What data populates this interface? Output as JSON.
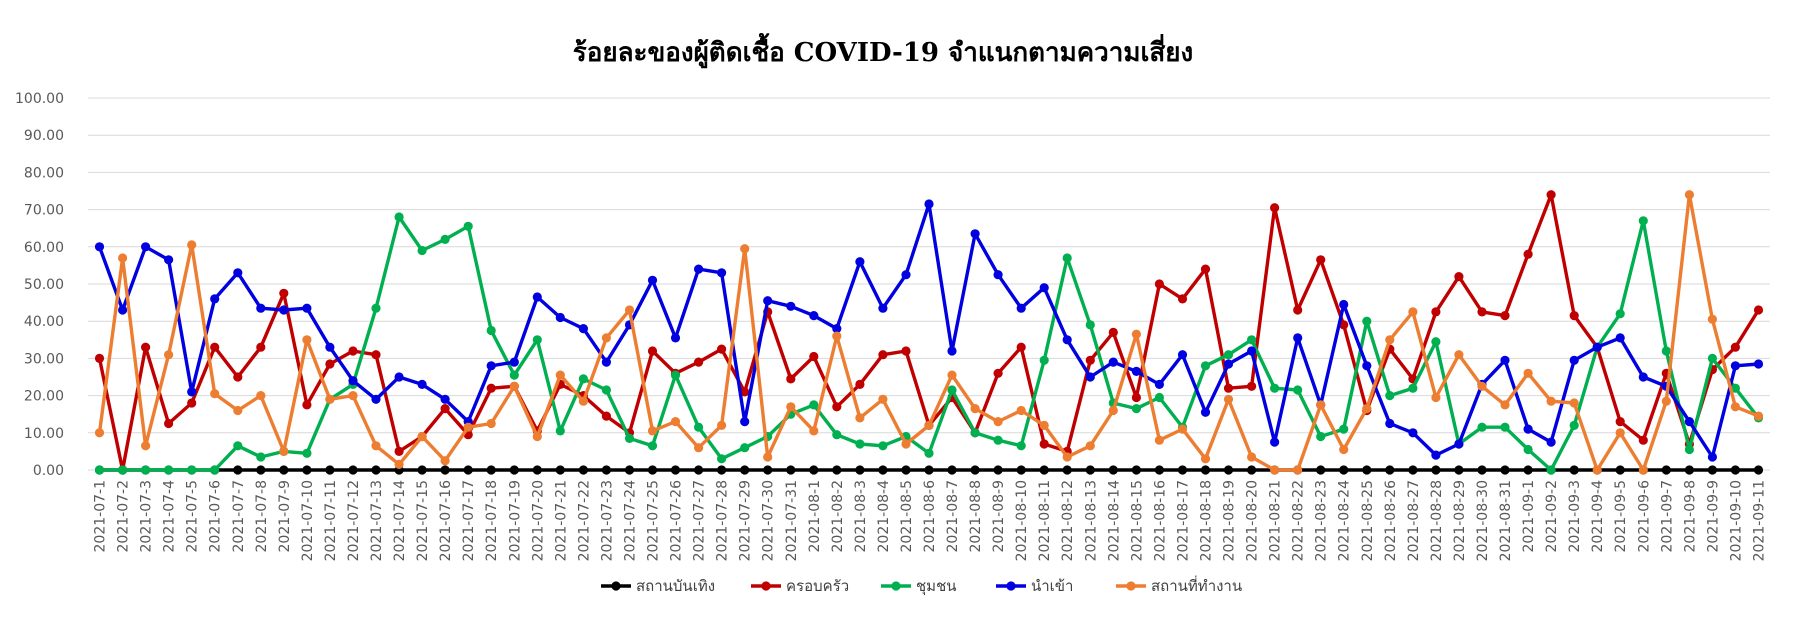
{
  "chart_data": {
    "type": "line",
    "title": "ร้อยละของผู้ติดเชื้อ COVID-19 จำแนกตามความเสี่ยง",
    "xlabel": "",
    "ylabel": "",
    "ylim": [
      0,
      100
    ],
    "yticks": [
      "0.00",
      "10.00",
      "20.00",
      "30.00",
      "40.00",
      "50.00",
      "60.00",
      "70.00",
      "80.00",
      "90.00",
      "100.00"
    ],
    "grid": true,
    "legend_position": "bottom",
    "categories": [
      "2021-07-1",
      "2021-07-2",
      "2021-07-3",
      "2021-07-4",
      "2021-07-5",
      "2021-07-6",
      "2021-07-7",
      "2021-07-8",
      "2021-07-9",
      "2021-07-10",
      "2021-07-11",
      "2021-07-12",
      "2021-07-13",
      "2021-07-14",
      "2021-07-15",
      "2021-07-16",
      "2021-07-17",
      "2021-07-18",
      "2021-07-19",
      "2021-07-20",
      "2021-07-21",
      "2021-07-22",
      "2021-07-23",
      "2021-07-24",
      "2021-07-25",
      "2021-07-26",
      "2021-07-27",
      "2021-07-28",
      "2021-07-29",
      "2021-07-30",
      "2021-07-31",
      "2021-08-1",
      "2021-08-2",
      "2021-08-3",
      "2021-08-4",
      "2021-08-5",
      "2021-08-6",
      "2021-08-7",
      "2021-08-8",
      "2021-08-9",
      "2021-08-10",
      "2021-08-11",
      "2021-08-12",
      "2021-08-13",
      "2021-08-14",
      "2021-08-15",
      "2021-08-16",
      "2021-08-17",
      "2021-08-18",
      "2021-08-19",
      "2021-08-20",
      "2021-08-21",
      "2021-08-22",
      "2021-08-23",
      "2021-08-24",
      "2021-08-25",
      "2021-08-26",
      "2021-08-27",
      "2021-08-28",
      "2021-08-29",
      "2021-08-30",
      "2021-08-31",
      "2021-09-1",
      "2021-09-2",
      "2021-09-3",
      "2021-09-4",
      "2021-09-5",
      "2021-09-6",
      "2021-09-7",
      "2021-09-8",
      "2021-09-9",
      "2021-09-10",
      "2021-09-11"
    ],
    "series": [
      {
        "name": "สถานบันเทิง",
        "color": "#000000",
        "values": [
          0,
          0,
          0,
          0,
          0,
          0,
          0,
          0,
          0,
          0,
          0,
          0,
          0,
          0,
          0,
          0,
          0,
          0,
          0,
          0,
          0,
          0,
          0,
          0,
          0,
          0,
          0,
          0,
          0,
          0,
          0,
          0,
          0,
          0,
          0,
          0,
          0,
          0,
          0,
          0,
          0,
          0,
          0,
          0,
          0,
          0,
          0,
          0,
          0,
          0,
          0,
          0,
          0,
          0,
          0,
          0,
          0,
          0,
          0,
          0,
          0,
          0,
          0,
          0,
          0,
          0,
          0,
          0,
          0,
          0,
          0,
          0,
          0
        ]
      },
      {
        "name": "ครอบครัว",
        "color": "#C00000",
        "values": [
          30,
          0,
          33,
          12.5,
          18,
          33,
          25,
          33,
          47.5,
          17.5,
          28.5,
          32,
          31,
          5,
          9,
          16.5,
          9.5,
          22,
          22.5,
          10.5,
          23,
          20,
          14.5,
          10,
          32,
          26,
          29,
          32.5,
          21,
          42.5,
          24.5,
          30.5,
          17,
          23,
          31,
          32,
          12,
          19.5,
          10,
          26,
          33,
          7,
          5,
          29.5,
          37,
          19.5,
          50,
          46,
          54,
          22,
          22.5,
          70.5,
          43,
          56.5,
          39,
          16,
          32.5,
          24.5,
          42.5,
          52,
          42.5,
          41.5,
          58,
          74,
          41.5,
          33,
          13,
          8,
          26,
          7,
          27,
          33,
          43
        ]
      },
      {
        "name": "ชุมชน",
        "color": "#00B050",
        "values": [
          0,
          0,
          0,
          0,
          0,
          0,
          6.5,
          3.5,
          5,
          4.5,
          19,
          23,
          43.5,
          68,
          59,
          62,
          65.5,
          37.5,
          25.5,
          35,
          10.5,
          24.5,
          21.5,
          8.5,
          6.5,
          25.5,
          11.5,
          3,
          6,
          9,
          15,
          17.5,
          9.5,
          7,
          6.5,
          9,
          4.5,
          21.5,
          10,
          8,
          6.5,
          29.5,
          57,
          39,
          18,
          16.5,
          19.5,
          11.5,
          28,
          31,
          35,
          22,
          21.5,
          9,
          11,
          40,
          20,
          22,
          34.5,
          7,
          11.5,
          11.5,
          5.5,
          0,
          12,
          33,
          42,
          67,
          32,
          5.5,
          30,
          22,
          14
        ]
      },
      {
        "name": "นำเข้า",
        "color": "#0000E0",
        "values": [
          60,
          43,
          60,
          56.5,
          21,
          46,
          53,
          43.5,
          43,
          43.5,
          33,
          24,
          19,
          25,
          23,
          19,
          13,
          28,
          29,
          46.5,
          41,
          38,
          29,
          39,
          51,
          35.5,
          54,
          53,
          13,
          45.5,
          44,
          41.5,
          38,
          56,
          43.5,
          52.5,
          71.5,
          32,
          63.5,
          52.5,
          43.5,
          49,
          35,
          25,
          29,
          26.5,
          23,
          31,
          15.5,
          28.5,
          32,
          7.5,
          35.5,
          17.5,
          44.5,
          28,
          12.5,
          10,
          4,
          7,
          23,
          29.5,
          11,
          7.5,
          29.5,
          33,
          35.5,
          25,
          22.5,
          13,
          3.5,
          28,
          28.5
        ]
      },
      {
        "name": "สถานที่ทำงาน",
        "color": "#ED7D31",
        "values": [
          10,
          57,
          6.5,
          31,
          60.5,
          20.5,
          16,
          20,
          5,
          35,
          19,
          20,
          6.5,
          1.5,
          9,
          2.5,
          11.5,
          12.5,
          22.5,
          9,
          25.5,
          18.5,
          35.5,
          43,
          10.5,
          13,
          6,
          12,
          59.5,
          3.5,
          17,
          10.5,
          36,
          14,
          19,
          7,
          12,
          25.5,
          16.5,
          13,
          16,
          12,
          3.5,
          6.5,
          16,
          36.5,
          8,
          11,
          3,
          19,
          3.5,
          0,
          0,
          17.5,
          5.5,
          16.5,
          35,
          42.5,
          19.5,
          31,
          22.5,
          17.5,
          26,
          18.5,
          18,
          0,
          10,
          0,
          18.5,
          74,
          40.5,
          17,
          14.5
        ]
      }
    ]
  }
}
